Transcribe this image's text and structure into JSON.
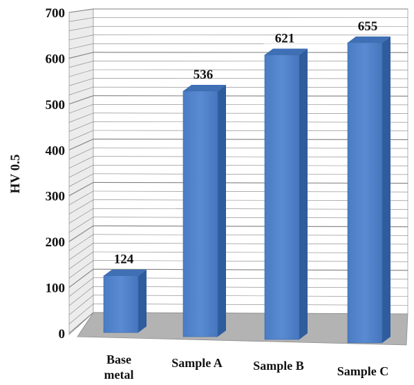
{
  "chart_data": {
    "type": "bar",
    "title": "",
    "xlabel": "",
    "ylabel": "HV 0.5",
    "categories": [
      "Base metal",
      "Sample A",
      "Sample B",
      "Sample C"
    ],
    "values": [
      124,
      536,
      621,
      655
    ],
    "data_labels": [
      "124",
      "536",
      "621",
      "655"
    ],
    "yticks": [
      "0",
      "100",
      "200",
      "300",
      "400",
      "500",
      "600",
      "700"
    ],
    "ylim": [
      0,
      700
    ],
    "grid": true,
    "minor_grid": true,
    "style": "3d-column",
    "colors": {
      "bar_front": "#4f81c7",
      "bar_side": "#2f5c9c",
      "bar_top": "#3f6fb5",
      "grid_line": "#7f7f7f",
      "floor": "#b3b3b3",
      "wall": "#ffffff"
    }
  }
}
